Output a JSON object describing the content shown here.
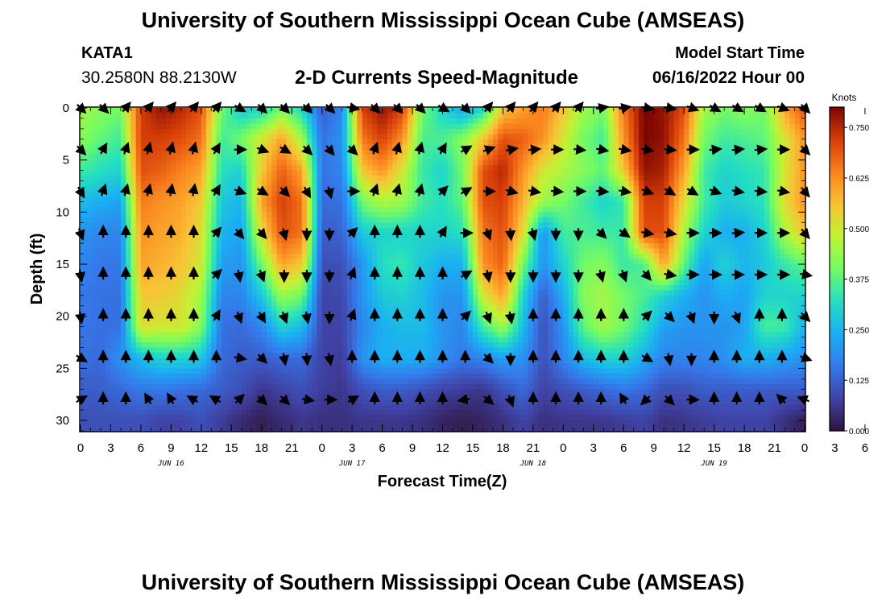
{
  "header": {
    "title": "University of Southern Mississippi Ocean Cube (AMSEAS)",
    "station": "KATA1",
    "coords": "30.2580N  88.2130W",
    "subtitle": "2-D Currents Speed-Magnitude",
    "start_label": "Model Start Time",
    "start_value": "06/16/2022 Hour 00"
  },
  "footer": {
    "title": "University of Southern Mississippi Ocean Cube (AMSEAS)"
  },
  "chart_data": {
    "type": "heatmap",
    "title": "2-D Currents Speed-Magnitude",
    "xlabel": "Forecast Time(Z)",
    "ylabel": "Depth (ft)",
    "x_range_hours": [
      0,
      72
    ],
    "ylim": [
      0,
      31
    ],
    "x_tick_labels": [
      "0",
      "3",
      "6",
      "9",
      "12",
      "15",
      "18",
      "21",
      "0",
      "3",
      "6",
      "9",
      "12",
      "15",
      "18",
      "21",
      "0",
      "3",
      "6",
      "9",
      "12",
      "15",
      "18",
      "21",
      "0",
      "3",
      "6",
      "9",
      "12",
      "15",
      "18",
      "21",
      "0"
    ],
    "day_labels": [
      {
        "label": "JUN 16",
        "hour": 9
      },
      {
        "label": "JUN 17",
        "hour": 27
      },
      {
        "label": "JUN 18",
        "hour": 45
      },
      {
        "label": "JUN 19",
        "hour": 63
      }
    ],
    "y_ticks": [
      0,
      5,
      10,
      15,
      20,
      25,
      30
    ],
    "colorbar": {
      "unit": "Knots",
      "min": 0.0,
      "max": 0.8,
      "tick_values": [
        0.0,
        0.125,
        0.25,
        0.375,
        0.5,
        0.625,
        0.75
      ],
      "tick_labels": [
        "0.000",
        "0.125",
        "0.250",
        "0.375",
        "0.500",
        "0.625",
        "0.750"
      ]
    },
    "speed_field": {
      "description": "current speed in knots by forecast hour (columns) and depth (rows)",
      "hours": [
        0,
        2,
        4,
        6,
        8,
        10,
        12,
        14,
        16,
        18,
        20,
        22,
        24,
        26,
        28,
        30,
        32,
        34,
        36,
        38,
        40,
        42,
        44,
        46,
        48,
        50,
        52,
        54,
        56,
        58,
        60,
        62,
        64,
        66,
        68,
        70,
        72
      ],
      "depths_ft": [
        0,
        3,
        6,
        9,
        12,
        15,
        18,
        21,
        24,
        27,
        30
      ],
      "values": [
        [
          0.45,
          0.42,
          0.4,
          0.72,
          0.78,
          0.75,
          0.7,
          0.4,
          0.28,
          0.3,
          0.4,
          0.3,
          0.12,
          0.18,
          0.72,
          0.78,
          0.72,
          0.4,
          0.3,
          0.22,
          0.3,
          0.55,
          0.6,
          0.65,
          0.55,
          0.45,
          0.4,
          0.65,
          0.8,
          0.78,
          0.7,
          0.45,
          0.4,
          0.42,
          0.4,
          0.6,
          0.7
        ],
        [
          0.42,
          0.38,
          0.35,
          0.72,
          0.72,
          0.7,
          0.66,
          0.35,
          0.4,
          0.5,
          0.6,
          0.45,
          0.15,
          0.2,
          0.65,
          0.72,
          0.62,
          0.36,
          0.36,
          0.42,
          0.55,
          0.7,
          0.68,
          0.62,
          0.5,
          0.4,
          0.35,
          0.62,
          0.8,
          0.78,
          0.66,
          0.4,
          0.35,
          0.36,
          0.38,
          0.5,
          0.62
        ],
        [
          0.35,
          0.32,
          0.3,
          0.7,
          0.68,
          0.64,
          0.6,
          0.32,
          0.3,
          0.55,
          0.68,
          0.6,
          0.15,
          0.18,
          0.55,
          0.62,
          0.5,
          0.34,
          0.3,
          0.4,
          0.7,
          0.75,
          0.62,
          0.5,
          0.46,
          0.42,
          0.38,
          0.55,
          0.78,
          0.76,
          0.6,
          0.35,
          0.3,
          0.32,
          0.34,
          0.5,
          0.62
        ],
        [
          0.26,
          0.24,
          0.22,
          0.65,
          0.62,
          0.6,
          0.55,
          0.28,
          0.25,
          0.6,
          0.72,
          0.66,
          0.14,
          0.15,
          0.4,
          0.46,
          0.44,
          0.35,
          0.32,
          0.38,
          0.7,
          0.72,
          0.58,
          0.44,
          0.4,
          0.35,
          0.3,
          0.34,
          0.72,
          0.72,
          0.52,
          0.35,
          0.28,
          0.3,
          0.33,
          0.52,
          0.62
        ],
        [
          0.2,
          0.18,
          0.18,
          0.62,
          0.6,
          0.58,
          0.52,
          0.25,
          0.22,
          0.52,
          0.7,
          0.66,
          0.12,
          0.13,
          0.28,
          0.3,
          0.3,
          0.3,
          0.3,
          0.32,
          0.65,
          0.7,
          0.52,
          0.2,
          0.35,
          0.36,
          0.35,
          0.34,
          0.7,
          0.7,
          0.45,
          0.3,
          0.24,
          0.24,
          0.3,
          0.45,
          0.56
        ],
        [
          0.18,
          0.16,
          0.16,
          0.6,
          0.58,
          0.56,
          0.5,
          0.22,
          0.2,
          0.4,
          0.6,
          0.55,
          0.1,
          0.1,
          0.2,
          0.32,
          0.34,
          0.28,
          0.24,
          0.24,
          0.62,
          0.68,
          0.4,
          0.2,
          0.3,
          0.4,
          0.42,
          0.34,
          0.36,
          0.6,
          0.38,
          0.22,
          0.3,
          0.25,
          0.28,
          0.34,
          0.38
        ],
        [
          0.16,
          0.15,
          0.15,
          0.55,
          0.55,
          0.52,
          0.45,
          0.18,
          0.18,
          0.28,
          0.44,
          0.4,
          0.08,
          0.09,
          0.2,
          0.28,
          0.3,
          0.26,
          0.2,
          0.2,
          0.5,
          0.6,
          0.3,
          0.12,
          0.24,
          0.42,
          0.45,
          0.4,
          0.36,
          0.3,
          0.24,
          0.2,
          0.24,
          0.22,
          0.3,
          0.3,
          0.3
        ],
        [
          0.16,
          0.15,
          0.15,
          0.52,
          0.5,
          0.5,
          0.42,
          0.15,
          0.14,
          0.18,
          0.3,
          0.26,
          0.08,
          0.08,
          0.18,
          0.24,
          0.26,
          0.26,
          0.2,
          0.18,
          0.35,
          0.45,
          0.26,
          0.1,
          0.2,
          0.38,
          0.45,
          0.4,
          0.32,
          0.22,
          0.2,
          0.2,
          0.2,
          0.22,
          0.36,
          0.35,
          0.24
        ],
        [
          0.15,
          0.14,
          0.2,
          0.26,
          0.3,
          0.3,
          0.28,
          0.14,
          0.12,
          0.12,
          0.14,
          0.14,
          0.08,
          0.07,
          0.2,
          0.24,
          0.24,
          0.24,
          0.2,
          0.16,
          0.18,
          0.22,
          0.2,
          0.1,
          0.18,
          0.26,
          0.3,
          0.3,
          0.24,
          0.18,
          0.18,
          0.18,
          0.2,
          0.24,
          0.24,
          0.22,
          0.2
        ],
        [
          0.12,
          0.12,
          0.14,
          0.16,
          0.16,
          0.15,
          0.14,
          0.12,
          0.1,
          0.06,
          0.08,
          0.1,
          0.07,
          0.06,
          0.1,
          0.12,
          0.12,
          0.1,
          0.08,
          0.07,
          0.06,
          0.1,
          0.14,
          0.08,
          0.1,
          0.12,
          0.14,
          0.16,
          0.14,
          0.1,
          0.1,
          0.12,
          0.12,
          0.12,
          0.12,
          0.12,
          0.12
        ],
        [
          0.1,
          0.1,
          0.1,
          0.1,
          0.08,
          0.08,
          0.1,
          0.07,
          0.04,
          0.02,
          0.04,
          0.06,
          0.05,
          0.05,
          0.06,
          0.06,
          0.06,
          0.05,
          0.03,
          0.02,
          0.03,
          0.05,
          0.08,
          0.05,
          0.06,
          0.06,
          0.06,
          0.07,
          0.08,
          0.05,
          0.06,
          0.07,
          0.08,
          0.08,
          0.08,
          0.05,
          0.02
        ]
      ]
    },
    "vector_field": {
      "description": "current direction arrows (degrees, 0 = north/up, clockwise) by forecast hour and depth",
      "hours": [
        0,
        2.25,
        4.5,
        6.75,
        9,
        11.25,
        13.5,
        15.75,
        18,
        20.25,
        22.5,
        24.75,
        27,
        29.25,
        31.5,
        33.75,
        36,
        38.25,
        40.5,
        42.75,
        45,
        47.25,
        49.5,
        51.75,
        54,
        56.25,
        58.5,
        60.75,
        63,
        65.25,
        67.5,
        69.75,
        72
      ],
      "depths_ft": [
        0,
        4,
        8,
        12,
        16,
        20,
        24,
        28
      ],
      "directions_deg": [
        [
          135,
          135,
          40,
          40,
          40,
          40,
          40,
          120,
          135,
          135,
          135,
          135,
          100,
          135,
          135,
          135,
          120,
          135,
          40,
          40,
          40,
          40,
          40,
          80,
          80,
          100,
          100,
          110,
          120,
          120,
          120,
          110,
          135
        ],
        [
          135,
          30,
          20,
          15,
          15,
          15,
          30,
          90,
          110,
          120,
          135,
          140,
          135,
          20,
          15,
          15,
          30,
          60,
          70,
          80,
          85,
          90,
          95,
          100,
          100,
          100,
          95,
          90,
          85,
          85,
          85,
          90,
          135
        ],
        [
          150,
          20,
          15,
          15,
          10,
          10,
          30,
          110,
          120,
          135,
          150,
          165,
          90,
          20,
          15,
          15,
          45,
          60,
          90,
          105,
          100,
          95,
          90,
          95,
          100,
          110,
          120,
          120,
          110,
          100,
          95,
          100,
          140
        ],
        [
          160,
          0,
          0,
          0,
          0,
          0,
          40,
          140,
          140,
          165,
          180,
          180,
          45,
          0,
          0,
          0,
          30,
          90,
          160,
          175,
          165,
          180,
          180,
          135,
          125,
          100,
          100,
          90,
          90,
          85,
          90,
          90,
          140
        ],
        [
          170,
          0,
          0,
          0,
          0,
          0,
          45,
          170,
          160,
          180,
          180,
          180,
          20,
          0,
          0,
          0,
          0,
          60,
          170,
          180,
          180,
          180,
          180,
          165,
          160,
          140,
          100,
          90,
          90,
          90,
          90,
          90,
          100
        ],
        [
          170,
          0,
          0,
          0,
          0,
          0,
          30,
          160,
          150,
          160,
          170,
          180,
          20,
          0,
          0,
          0,
          0,
          45,
          160,
          170,
          0,
          0,
          0,
          0,
          0,
          45,
          135,
          160,
          180,
          160,
          0,
          0,
          135
        ],
        [
          120,
          0,
          0,
          0,
          0,
          0,
          0,
          100,
          135,
          170,
          175,
          170,
          0,
          0,
          0,
          0,
          0,
          0,
          135,
          180,
          0,
          0,
          0,
          0,
          0,
          120,
          170,
          180,
          0,
          0,
          0,
          0,
          110
        ],
        [
          60,
          0,
          0,
          330,
          330,
          300,
          300,
          45,
          135,
          135,
          100,
          90,
          60,
          0,
          0,
          0,
          0,
          260,
          130,
          160,
          0,
          0,
          0,
          0,
          330,
          225,
          135,
          90,
          0,
          0,
          0,
          315,
          290
        ]
      ]
    }
  }
}
